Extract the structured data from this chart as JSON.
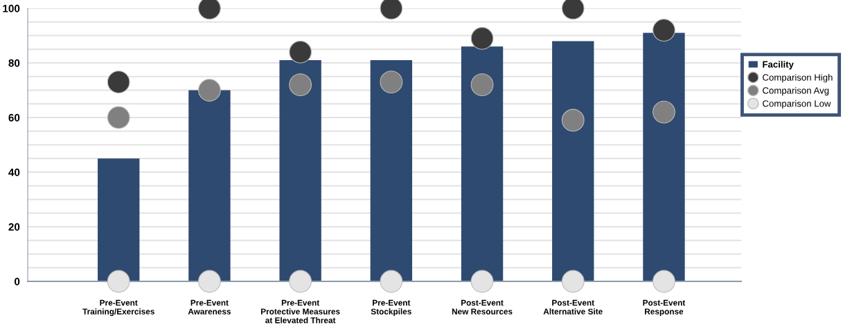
{
  "chart_data": {
    "type": "bar",
    "categories": [
      "Pre-Event\nTraining/Exercises",
      "Pre-Event\nAwareness",
      "Pre-Event\nProtective Measures\nat Elevated Threat",
      "Pre-Event\nStockpiles",
      "Post-Event\nNew Resources",
      "Post-Event\nAlternative Site",
      "Post-Event\nResponse"
    ],
    "series": [
      {
        "name": "Facility",
        "color": "#2f4a70",
        "values": [
          45,
          70,
          81,
          81,
          86,
          88,
          91
        ]
      },
      {
        "name": "Comparison High",
        "type": "scatter",
        "color": "#3a3a3a",
        "values": [
          73,
          100,
          84,
          100,
          89,
          100,
          92
        ]
      },
      {
        "name": "Comparison Avg",
        "type": "scatter",
        "color": "#808080",
        "values": [
          60,
          70,
          72,
          73,
          72,
          59,
          62
        ]
      },
      {
        "name": "Comparison Low",
        "type": "scatter",
        "color": "#e4e4e4",
        "values": [
          0,
          0,
          0,
          0,
          0,
          0,
          0
        ]
      }
    ],
    "ylim": [
      0,
      100
    ],
    "yticks": [
      0,
      {
        "value": 5,
        "label": null
      },
      {
        "value": 10,
        "label": null
      },
      {
        "value": 15,
        "label": null
      },
      20,
      {
        "value": 25,
        "label": null
      },
      {
        "value": 30,
        "label": null
      },
      {
        "value": 35,
        "label": null
      },
      40,
      {
        "value": 45,
        "label": null
      },
      {
        "value": 50,
        "label": null
      },
      {
        "value": 55,
        "label": null
      },
      60,
      {
        "value": 65,
        "label": null
      },
      {
        "value": 70,
        "label": null
      },
      {
        "value": 75,
        "label": null
      },
      80,
      {
        "value": 85,
        "label": null
      },
      {
        "value": 90,
        "label": null
      },
      {
        "value": 95,
        "label": null
      },
      100
    ],
    "grid": "y",
    "legend": "right",
    "marker": "circle"
  }
}
